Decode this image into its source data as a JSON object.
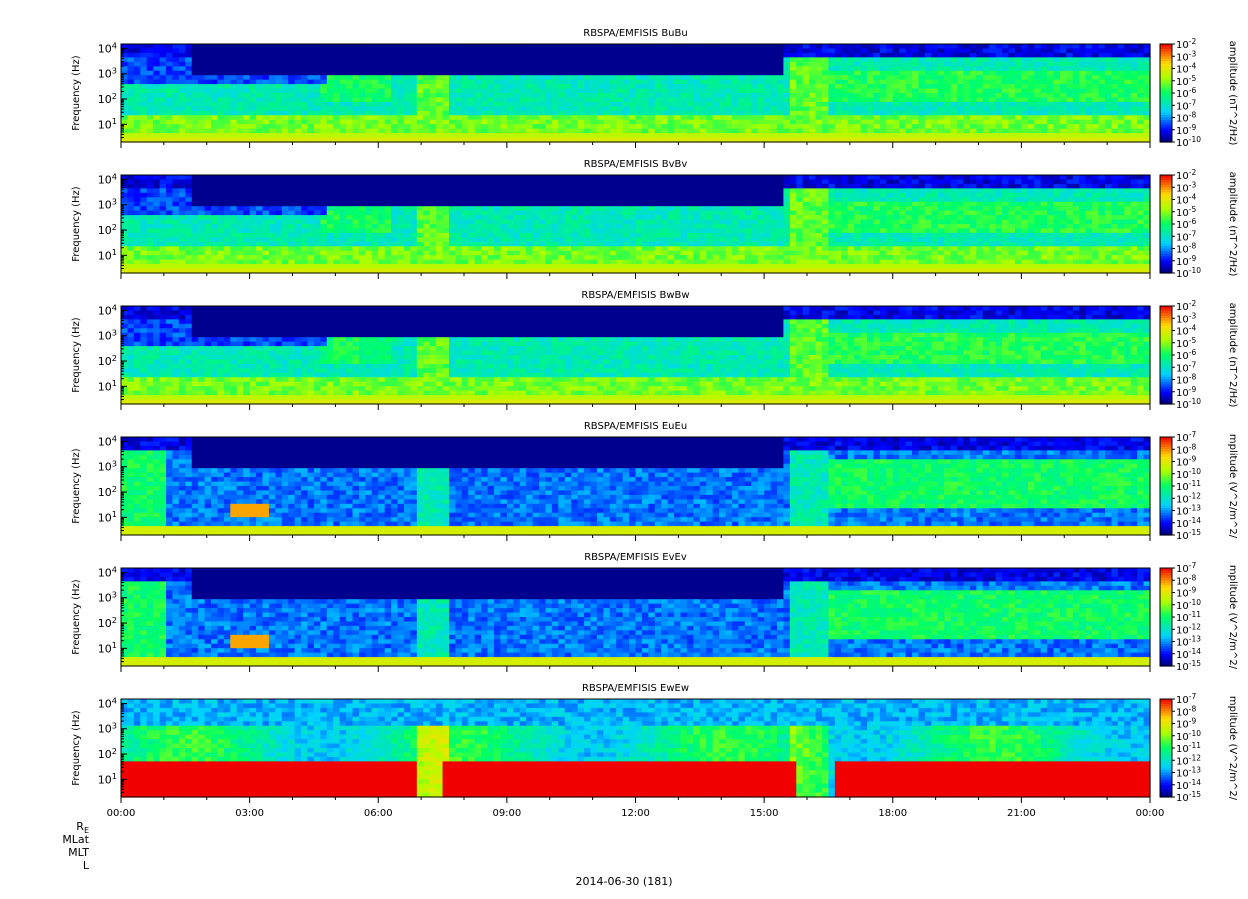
{
  "chart_data": {
    "type": "heatmap",
    "xaxis": {
      "ticks": [
        "00:00",
        "03:00",
        "06:00",
        "09:00",
        "12:00",
        "15:00",
        "18:00",
        "21:00",
        "00:00"
      ],
      "range_hours": [
        0,
        24
      ],
      "date_label": "2014-06-30 (181)"
    },
    "ephemeris_labels": [
      "RE",
      "MLat",
      "MLT",
      "L"
    ],
    "panels": [
      {
        "title": "RBSPA/EMFISIS  BuBu",
        "ylabel": "Frequency (Hz)",
        "yticks": [
          "10^1",
          "10^2",
          "10^3",
          "10^4"
        ],
        "ylim": [
          2,
          15000
        ],
        "yscale": "log",
        "cbar_label": "amplitude (nT^2/Hz)",
        "cbar_ticks": [
          "10^-2",
          "10^-3",
          "10^-4",
          "10^-5",
          "10^-6",
          "10^-7",
          "10^-8",
          "10^-9",
          "10^-10"
        ],
        "cbar_range": [
          -10,
          -2
        ],
        "kind": "B",
        "seed": 1
      },
      {
        "title": "RBSPA/EMFISIS  BvBv",
        "ylabel": "Frequency (Hz)",
        "yticks": [
          "10^1",
          "10^2",
          "10^3",
          "10^4"
        ],
        "ylim": [
          2,
          15000
        ],
        "yscale": "log",
        "cbar_label": "amplitude (nT^2/Hz)",
        "cbar_ticks": [
          "10^-2",
          "10^-3",
          "10^-4",
          "10^-5",
          "10^-6",
          "10^-7",
          "10^-8",
          "10^-9",
          "10^-10"
        ],
        "cbar_range": [
          -10,
          -2
        ],
        "kind": "B",
        "seed": 2
      },
      {
        "title": "RBSPA/EMFISIS  BwBw",
        "ylabel": "Frequency (Hz)",
        "yticks": [
          "10^1",
          "10^2",
          "10^3",
          "10^4"
        ],
        "ylim": [
          2,
          15000
        ],
        "yscale": "log",
        "cbar_label": "amplitude (nT^2/Hz)",
        "cbar_ticks": [
          "10^-2",
          "10^-3",
          "10^-4",
          "10^-5",
          "10^-6",
          "10^-7",
          "10^-8",
          "10^-9",
          "10^-10"
        ],
        "cbar_range": [
          -10,
          -2
        ],
        "kind": "B",
        "seed": 3
      },
      {
        "title": "RBSPA/EMFISIS  EuEu",
        "ylabel": "Frequency (Hz)",
        "yticks": [
          "10^1",
          "10^2",
          "10^3",
          "10^4"
        ],
        "ylim": [
          2,
          15000
        ],
        "yscale": "log",
        "cbar_label": "mplitude (V^2/m^2/",
        "cbar_ticks": [
          "10^-7",
          "10^-8",
          "10^-9",
          "10^-10",
          "10^-11",
          "10^-12",
          "10^-13",
          "10^-14",
          "10^-15"
        ],
        "cbar_range": [
          -15,
          -7
        ],
        "kind": "E",
        "seed": 4
      },
      {
        "title": "RBSPA/EMFISIS  EvEv",
        "ylabel": "Frequency (Hz)",
        "yticks": [
          "10^1",
          "10^2",
          "10^3",
          "10^4"
        ],
        "ylim": [
          2,
          15000
        ],
        "yscale": "log",
        "cbar_label": "mplitude (V^2/m^2/",
        "cbar_ticks": [
          "10^-7",
          "10^-8",
          "10^-9",
          "10^-10",
          "10^-11",
          "10^-12",
          "10^-13",
          "10^-14",
          "10^-15"
        ],
        "cbar_range": [
          -15,
          -7
        ],
        "kind": "E",
        "seed": 5
      },
      {
        "title": "RBSPA/EMFISIS  EwEw",
        "ylabel": "Frequency (Hz)",
        "yticks": [
          "10^1",
          "10^2",
          "10^3",
          "10^4"
        ],
        "ylim": [
          2,
          15000
        ],
        "yscale": "log",
        "cbar_label": "mplitude (V^2/m^2/",
        "cbar_ticks": [
          "10^-7",
          "10^-8",
          "10^-9",
          "10^-10",
          "10^-11",
          "10^-12",
          "10^-13",
          "10^-14",
          "10^-15"
        ],
        "cbar_range": [
          -15,
          -7
        ],
        "kind": "Ew",
        "seed": 6
      }
    ]
  }
}
